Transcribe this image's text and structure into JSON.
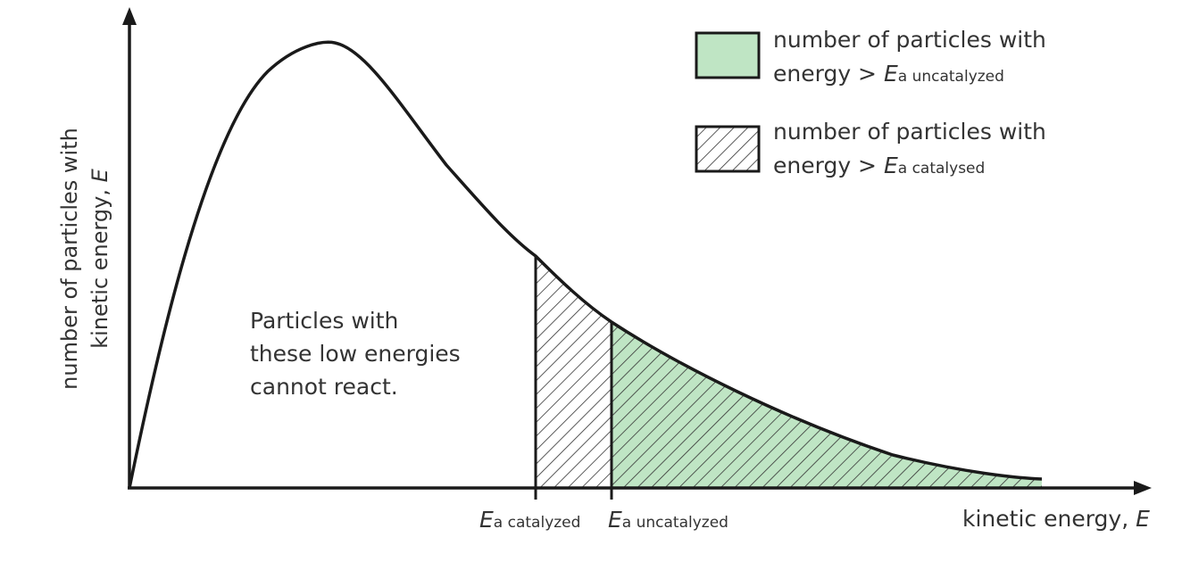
{
  "y_axis": {
    "line1": "number of particles with",
    "line2_text": "kinetic energy, ",
    "line2_symbol": "E"
  },
  "x_axis": {
    "text": "kinetic energy, ",
    "symbol": "E"
  },
  "markers": {
    "catalyzed": {
      "symbol": "E",
      "subscript": "a catalyzed"
    },
    "uncatalyzed": {
      "symbol": "E",
      "subscript": "a uncatalyzed"
    }
  },
  "legend": {
    "items": [
      {
        "line1": "number of particles with",
        "line2": "energy > ",
        "symbol": "E",
        "subscript": "a uncatalyzed",
        "fill": "#bfe5c4"
      },
      {
        "line1": "number of particles with",
        "line2": "energy > ",
        "symbol": "E",
        "subscript": "a catalysed",
        "fill": "hatch"
      }
    ]
  },
  "note": {
    "lines": [
      "Particles with",
      "these low energies",
      "cannot react."
    ]
  },
  "colors": {
    "curve": "#1a1a1a",
    "green_fill": "#bfe5c4",
    "hatch": "#333333",
    "text": "#333333"
  }
}
